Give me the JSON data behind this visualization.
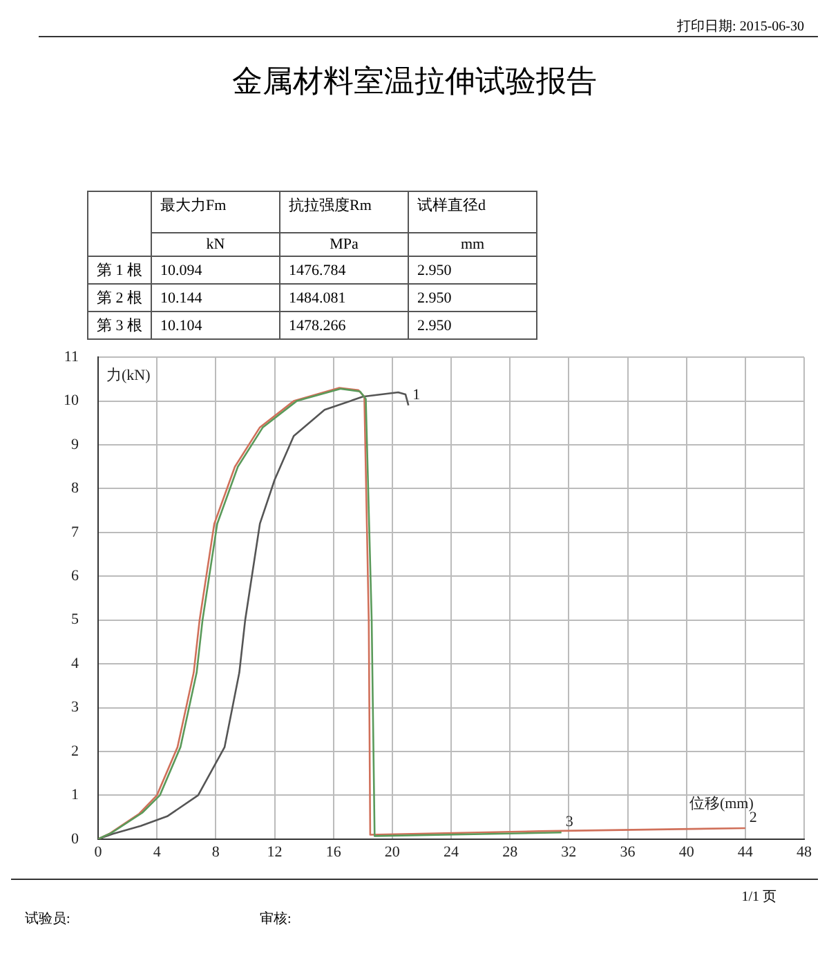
{
  "chart_data": [
    {
      "type": "other",
      "title": "金属材料室温拉伸试验报告",
      "annotations": [
        "打印日期: 2015-06-30",
        "最大力Fm",
        "抗拉强度Rm",
        "试样直径d",
        "kN",
        "MPa",
        "mm",
        "第 1 根",
        "10.094",
        "1476.784",
        "2.950",
        "第 2 根",
        "10.144",
        "1484.081",
        "2.950",
        "第 3 根",
        "10.104",
        "1478.266",
        "2.950"
      ]
    },
    {
      "type": "line",
      "xlabel": "位移(mm)",
      "ylabel": "力(kN)",
      "xlim": [
        0,
        48
      ],
      "xticks": [
        0,
        4,
        8,
        12,
        16,
        20,
        24,
        28,
        32,
        36,
        40,
        44,
        48
      ],
      "ylim": [
        0,
        11
      ],
      "yticks": [
        0,
        1,
        2,
        3,
        4,
        5,
        6,
        7,
        8,
        9,
        10,
        11
      ],
      "grid": true,
      "legend": false,
      "marker": "none",
      "line_style": "solid",
      "annotations": [
        "1/1 页",
        "试验员:",
        "审核:"
      ],
      "series": [
        {
          "name": "1",
          "color": "#555555",
          "x": [
            0,
            1,
            2.9,
            4.7,
            6.8,
            8.6,
            9.6,
            10.0,
            11.0,
            12.0,
            13.3,
            15.4,
            18.0,
            20.4,
            20.9,
            21.1
          ],
          "values": [
            0,
            0.12,
            0.3,
            0.52,
            1.0,
            2.1,
            3.8,
            5.0,
            7.2,
            8.2,
            9.2,
            9.8,
            10.1,
            10.2,
            10.15,
            9.9
          ]
        },
        {
          "name": "2",
          "color": "#d0705a",
          "x": [
            0,
            0.8,
            2.8,
            4.0,
            5.4,
            6.5,
            6.9,
            7.9,
            9.3,
            11.0,
            13.3,
            16.4,
            17.7,
            18.1,
            18.4,
            18.5,
            30,
            44
          ],
          "values": [
            0,
            0.13,
            0.58,
            1.0,
            2.1,
            3.8,
            5.0,
            7.2,
            8.5,
            9.4,
            10.0,
            10.3,
            10.25,
            10.1,
            5.0,
            0.1,
            0.18,
            0.25
          ]
        },
        {
          "name": "3",
          "color": "#5a9a5a",
          "x": [
            0,
            0.9,
            3.0,
            4.2,
            5.6,
            6.7,
            7.1,
            8.1,
            9.5,
            11.2,
            13.5,
            16.5,
            17.8,
            18.2,
            18.6,
            18.8,
            31.5
          ],
          "values": [
            0,
            0.14,
            0.6,
            1.0,
            2.1,
            3.8,
            5.0,
            7.2,
            8.5,
            9.4,
            10.0,
            10.28,
            10.22,
            10.05,
            5.0,
            0.07,
            0.15
          ]
        }
      ]
    }
  ]
}
